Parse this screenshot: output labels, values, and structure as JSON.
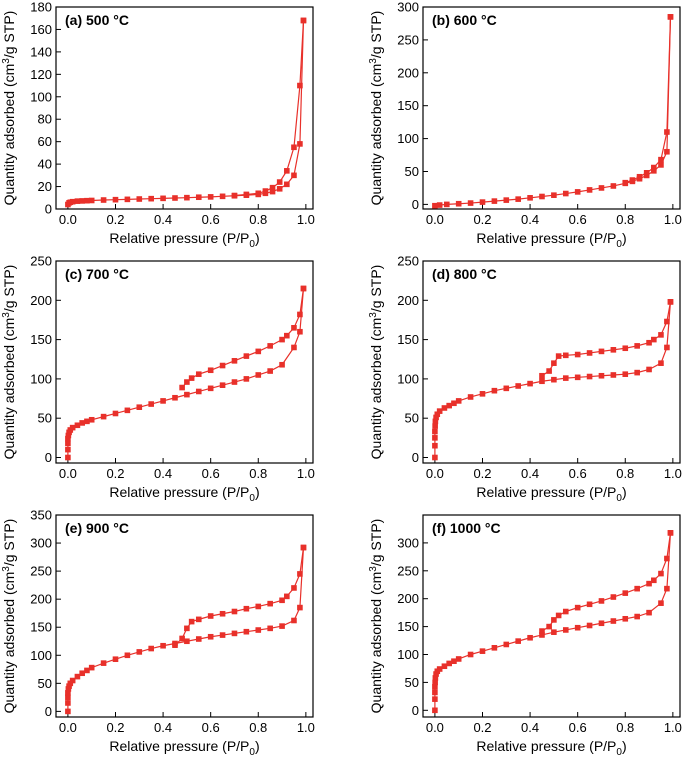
{
  "colors": {
    "series": "#e8302a",
    "axis": "#000000"
  },
  "chart_data": [
    {
      "type": "scatter",
      "title": "(a) 500 °C",
      "xlabel": "Relative pressure (P/P0)",
      "ylabel": "Quantity adsorbed (cm3/g STP)",
      "xlim": [
        -0.05,
        1.03
      ],
      "ylim": [
        0,
        180
      ],
      "xticks": [
        0.0,
        0.2,
        0.4,
        0.6,
        0.8,
        1.0
      ],
      "yticks": [
        0,
        20,
        40,
        60,
        80,
        100,
        120,
        140,
        160,
        180
      ],
      "series": [
        {
          "values_x": [
            0.0,
            0.005,
            0.01,
            0.02,
            0.04,
            0.06,
            0.08,
            0.1,
            0.15,
            0.2,
            0.25,
            0.3,
            0.35,
            0.4,
            0.45,
            0.5,
            0.55,
            0.6,
            0.65,
            0.7,
            0.75,
            0.8,
            0.83,
            0.86,
            0.89,
            0.92,
            0.95,
            0.975,
            0.99
          ],
          "values_y": [
            4,
            5.5,
            6,
            6.5,
            7,
            7.2,
            7.4,
            7.6,
            8,
            8.3,
            8.6,
            8.9,
            9.2,
            9.5,
            9.8,
            10.1,
            10.5,
            10.8,
            11.3,
            11.8,
            12.3,
            13,
            14,
            15.5,
            18,
            22,
            30,
            58,
            168
          ]
        },
        {
          "values_x": [
            0.99,
            0.975,
            0.95,
            0.92,
            0.89,
            0.86,
            0.83,
            0.8,
            0.75,
            0.7
          ],
          "values_y": [
            168,
            110,
            55,
            34,
            24,
            19,
            16,
            14,
            13,
            12
          ]
        }
      ]
    },
    {
      "type": "scatter",
      "title": "(b) 600 °C",
      "xlabel": "Relative pressure (P/P0)",
      "ylabel": "Quantity adsorbed (cm3/g STP)",
      "xlim": [
        -0.05,
        1.03
      ],
      "ylim": [
        -7,
        300
      ],
      "xticks": [
        0.0,
        0.2,
        0.4,
        0.6,
        0.8,
        1.0
      ],
      "yticks": [
        0,
        50,
        100,
        150,
        200,
        250,
        300
      ],
      "series": [
        {
          "values_x": [
            0.0,
            0.02,
            0.05,
            0.1,
            0.15,
            0.2,
            0.25,
            0.3,
            0.35,
            0.4,
            0.45,
            0.5,
            0.55,
            0.6,
            0.65,
            0.7,
            0.75,
            0.8,
            0.83,
            0.86,
            0.89,
            0.92,
            0.95,
            0.975,
            0.99
          ],
          "values_y": [
            -2,
            -1,
            0,
            1,
            2,
            3.5,
            5,
            6.5,
            8,
            10,
            12,
            14,
            16.5,
            19,
            22,
            25,
            28,
            32,
            35,
            39,
            44,
            51,
            60,
            80,
            285
          ]
        },
        {
          "values_x": [
            0.99,
            0.975,
            0.95,
            0.92,
            0.89,
            0.86,
            0.83,
            0.8
          ],
          "values_y": [
            285,
            110,
            68,
            56,
            48,
            42,
            37,
            33
          ]
        }
      ]
    },
    {
      "type": "scatter",
      "title": "(c) 700 °C",
      "xlabel": "Relative pressure (P/P0)",
      "ylabel": "Quantity adsorbed (cm3/g STP)",
      "xlim": [
        -0.05,
        1.03
      ],
      "ylim": [
        -7,
        250
      ],
      "xticks": [
        0.0,
        0.2,
        0.4,
        0.6,
        0.8,
        1.0
      ],
      "yticks": [
        0,
        50,
        100,
        150,
        200,
        250
      ],
      "series": [
        {
          "values_x": [
            0.0,
            0.0,
            0.0,
            0.0,
            0.002,
            0.005,
            0.01,
            0.02,
            0.04,
            0.06,
            0.08,
            0.1,
            0.15,
            0.2,
            0.25,
            0.3,
            0.35,
            0.4,
            0.45,
            0.5,
            0.55,
            0.6,
            0.65,
            0.7,
            0.75,
            0.8,
            0.85,
            0.9,
            0.95,
            0.975,
            0.99
          ],
          "values_y": [
            0,
            10,
            18,
            24,
            28,
            32,
            35,
            38,
            41,
            44,
            46,
            48,
            52,
            56,
            60,
            64,
            68,
            72,
            76,
            80,
            84,
            88,
            92,
            96,
            100,
            105,
            110,
            118,
            140,
            160,
            215
          ]
        },
        {
          "values_x": [
            0.99,
            0.975,
            0.95,
            0.92,
            0.9,
            0.85,
            0.8,
            0.75,
            0.7,
            0.65,
            0.6,
            0.55,
            0.52,
            0.5,
            0.48
          ],
          "values_y": [
            215,
            182,
            165,
            155,
            150,
            142,
            135,
            129,
            123,
            117,
            111,
            106,
            101,
            96,
            89
          ]
        }
      ]
    },
    {
      "type": "scatter",
      "title": "(d) 800 °C",
      "xlabel": "Relative pressure (P/P0)",
      "ylabel": "Quantity adsorbed (cm3/g STP)",
      "xlim": [
        -0.05,
        1.03
      ],
      "ylim": [
        -7,
        250
      ],
      "xticks": [
        0.0,
        0.2,
        0.4,
        0.6,
        0.8,
        1.0
      ],
      "yticks": [
        0,
        50,
        100,
        150,
        200,
        250
      ],
      "series": [
        {
          "values_x": [
            0.0,
            0.0,
            0.0,
            0.0,
            0.001,
            0.002,
            0.005,
            0.01,
            0.02,
            0.04,
            0.06,
            0.08,
            0.1,
            0.15,
            0.2,
            0.25,
            0.3,
            0.35,
            0.4,
            0.45,
            0.5,
            0.55,
            0.6,
            0.65,
            0.7,
            0.75,
            0.8,
            0.85,
            0.9,
            0.95,
            0.975,
            0.99
          ],
          "values_y": [
            0,
            15,
            25,
            33,
            40,
            46,
            51,
            55,
            59,
            63,
            66,
            69,
            72,
            77,
            81,
            85,
            88,
            91,
            94,
            97,
            99,
            101,
            102,
            103,
            104,
            105,
            106,
            108,
            112,
            120,
            140,
            198
          ]
        },
        {
          "values_x": [
            0.99,
            0.975,
            0.95,
            0.92,
            0.9,
            0.85,
            0.8,
            0.75,
            0.7,
            0.65,
            0.6,
            0.55,
            0.52,
            0.5,
            0.48,
            0.45
          ],
          "values_y": [
            198,
            173,
            156,
            150,
            146,
            142,
            139,
            137,
            135,
            133,
            131,
            130,
            129,
            120,
            110,
            104
          ]
        }
      ]
    },
    {
      "type": "scatter",
      "title": "(e) 900 °C",
      "xlabel": "Relative pressure (P/P0)",
      "ylabel": "Quantity adsorbed (cm3/g STP)",
      "xlim": [
        -0.05,
        1.03
      ],
      "ylim": [
        -10,
        350
      ],
      "xticks": [
        0.0,
        0.2,
        0.4,
        0.6,
        0.8,
        1.0
      ],
      "yticks": [
        0,
        50,
        100,
        150,
        200,
        250,
        300,
        350
      ],
      "series": [
        {
          "values_x": [
            0.0,
            0.0,
            0.0,
            0.0,
            0.002,
            0.005,
            0.01,
            0.02,
            0.04,
            0.06,
            0.08,
            0.1,
            0.15,
            0.2,
            0.25,
            0.3,
            0.35,
            0.4,
            0.45,
            0.5,
            0.55,
            0.6,
            0.65,
            0.7,
            0.75,
            0.8,
            0.85,
            0.9,
            0.95,
            0.975,
            0.99
          ],
          "values_y": [
            0,
            15,
            25,
            33,
            40,
            45,
            50,
            55,
            62,
            68,
            73,
            78,
            86,
            93,
            100,
            106,
            112,
            117,
            121,
            125,
            129,
            133,
            136,
            139,
            142,
            145,
            148,
            152,
            162,
            185,
            292
          ]
        },
        {
          "values_x": [
            0.99,
            0.975,
            0.95,
            0.92,
            0.9,
            0.85,
            0.8,
            0.75,
            0.7,
            0.65,
            0.6,
            0.55,
            0.52,
            0.5,
            0.48,
            0.45
          ],
          "values_y": [
            292,
            245,
            220,
            205,
            198,
            192,
            187,
            183,
            178,
            174,
            170,
            164,
            160,
            148,
            130,
            118
          ]
        }
      ]
    },
    {
      "type": "scatter",
      "title": "(f) 1000 °C",
      "xlabel": "Relative pressure (P/P0)",
      "ylabel": "Quantity adsorbed (cm3/g STP)",
      "xlim": [
        -0.05,
        1.03
      ],
      "ylim": [
        -12,
        350
      ],
      "xticks": [
        0.0,
        0.2,
        0.4,
        0.6,
        0.8,
        1.0
      ],
      "yticks": [
        0,
        50,
        100,
        150,
        200,
        250,
        300
      ],
      "series": [
        {
          "values_x": [
            0.0,
            0.0,
            0.0,
            0.0,
            0.001,
            0.002,
            0.005,
            0.01,
            0.02,
            0.04,
            0.06,
            0.08,
            0.1,
            0.15,
            0.2,
            0.25,
            0.3,
            0.35,
            0.4,
            0.45,
            0.5,
            0.55,
            0.6,
            0.65,
            0.7,
            0.75,
            0.8,
            0.85,
            0.9,
            0.95,
            0.975,
            0.99
          ],
          "values_y": [
            0,
            20,
            32,
            42,
            50,
            58,
            65,
            70,
            74,
            79,
            84,
            88,
            92,
            100,
            106,
            112,
            118,
            124,
            130,
            135,
            140,
            144,
            148,
            152,
            156,
            160,
            164,
            168,
            175,
            192,
            218,
            318
          ]
        },
        {
          "values_x": [
            0.99,
            0.975,
            0.95,
            0.92,
            0.9,
            0.85,
            0.8,
            0.75,
            0.7,
            0.65,
            0.6,
            0.55,
            0.52,
            0.5,
            0.48,
            0.45
          ],
          "values_y": [
            318,
            272,
            245,
            233,
            227,
            218,
            210,
            203,
            196,
            190,
            184,
            177,
            170,
            162,
            150,
            142
          ]
        }
      ]
    }
  ]
}
